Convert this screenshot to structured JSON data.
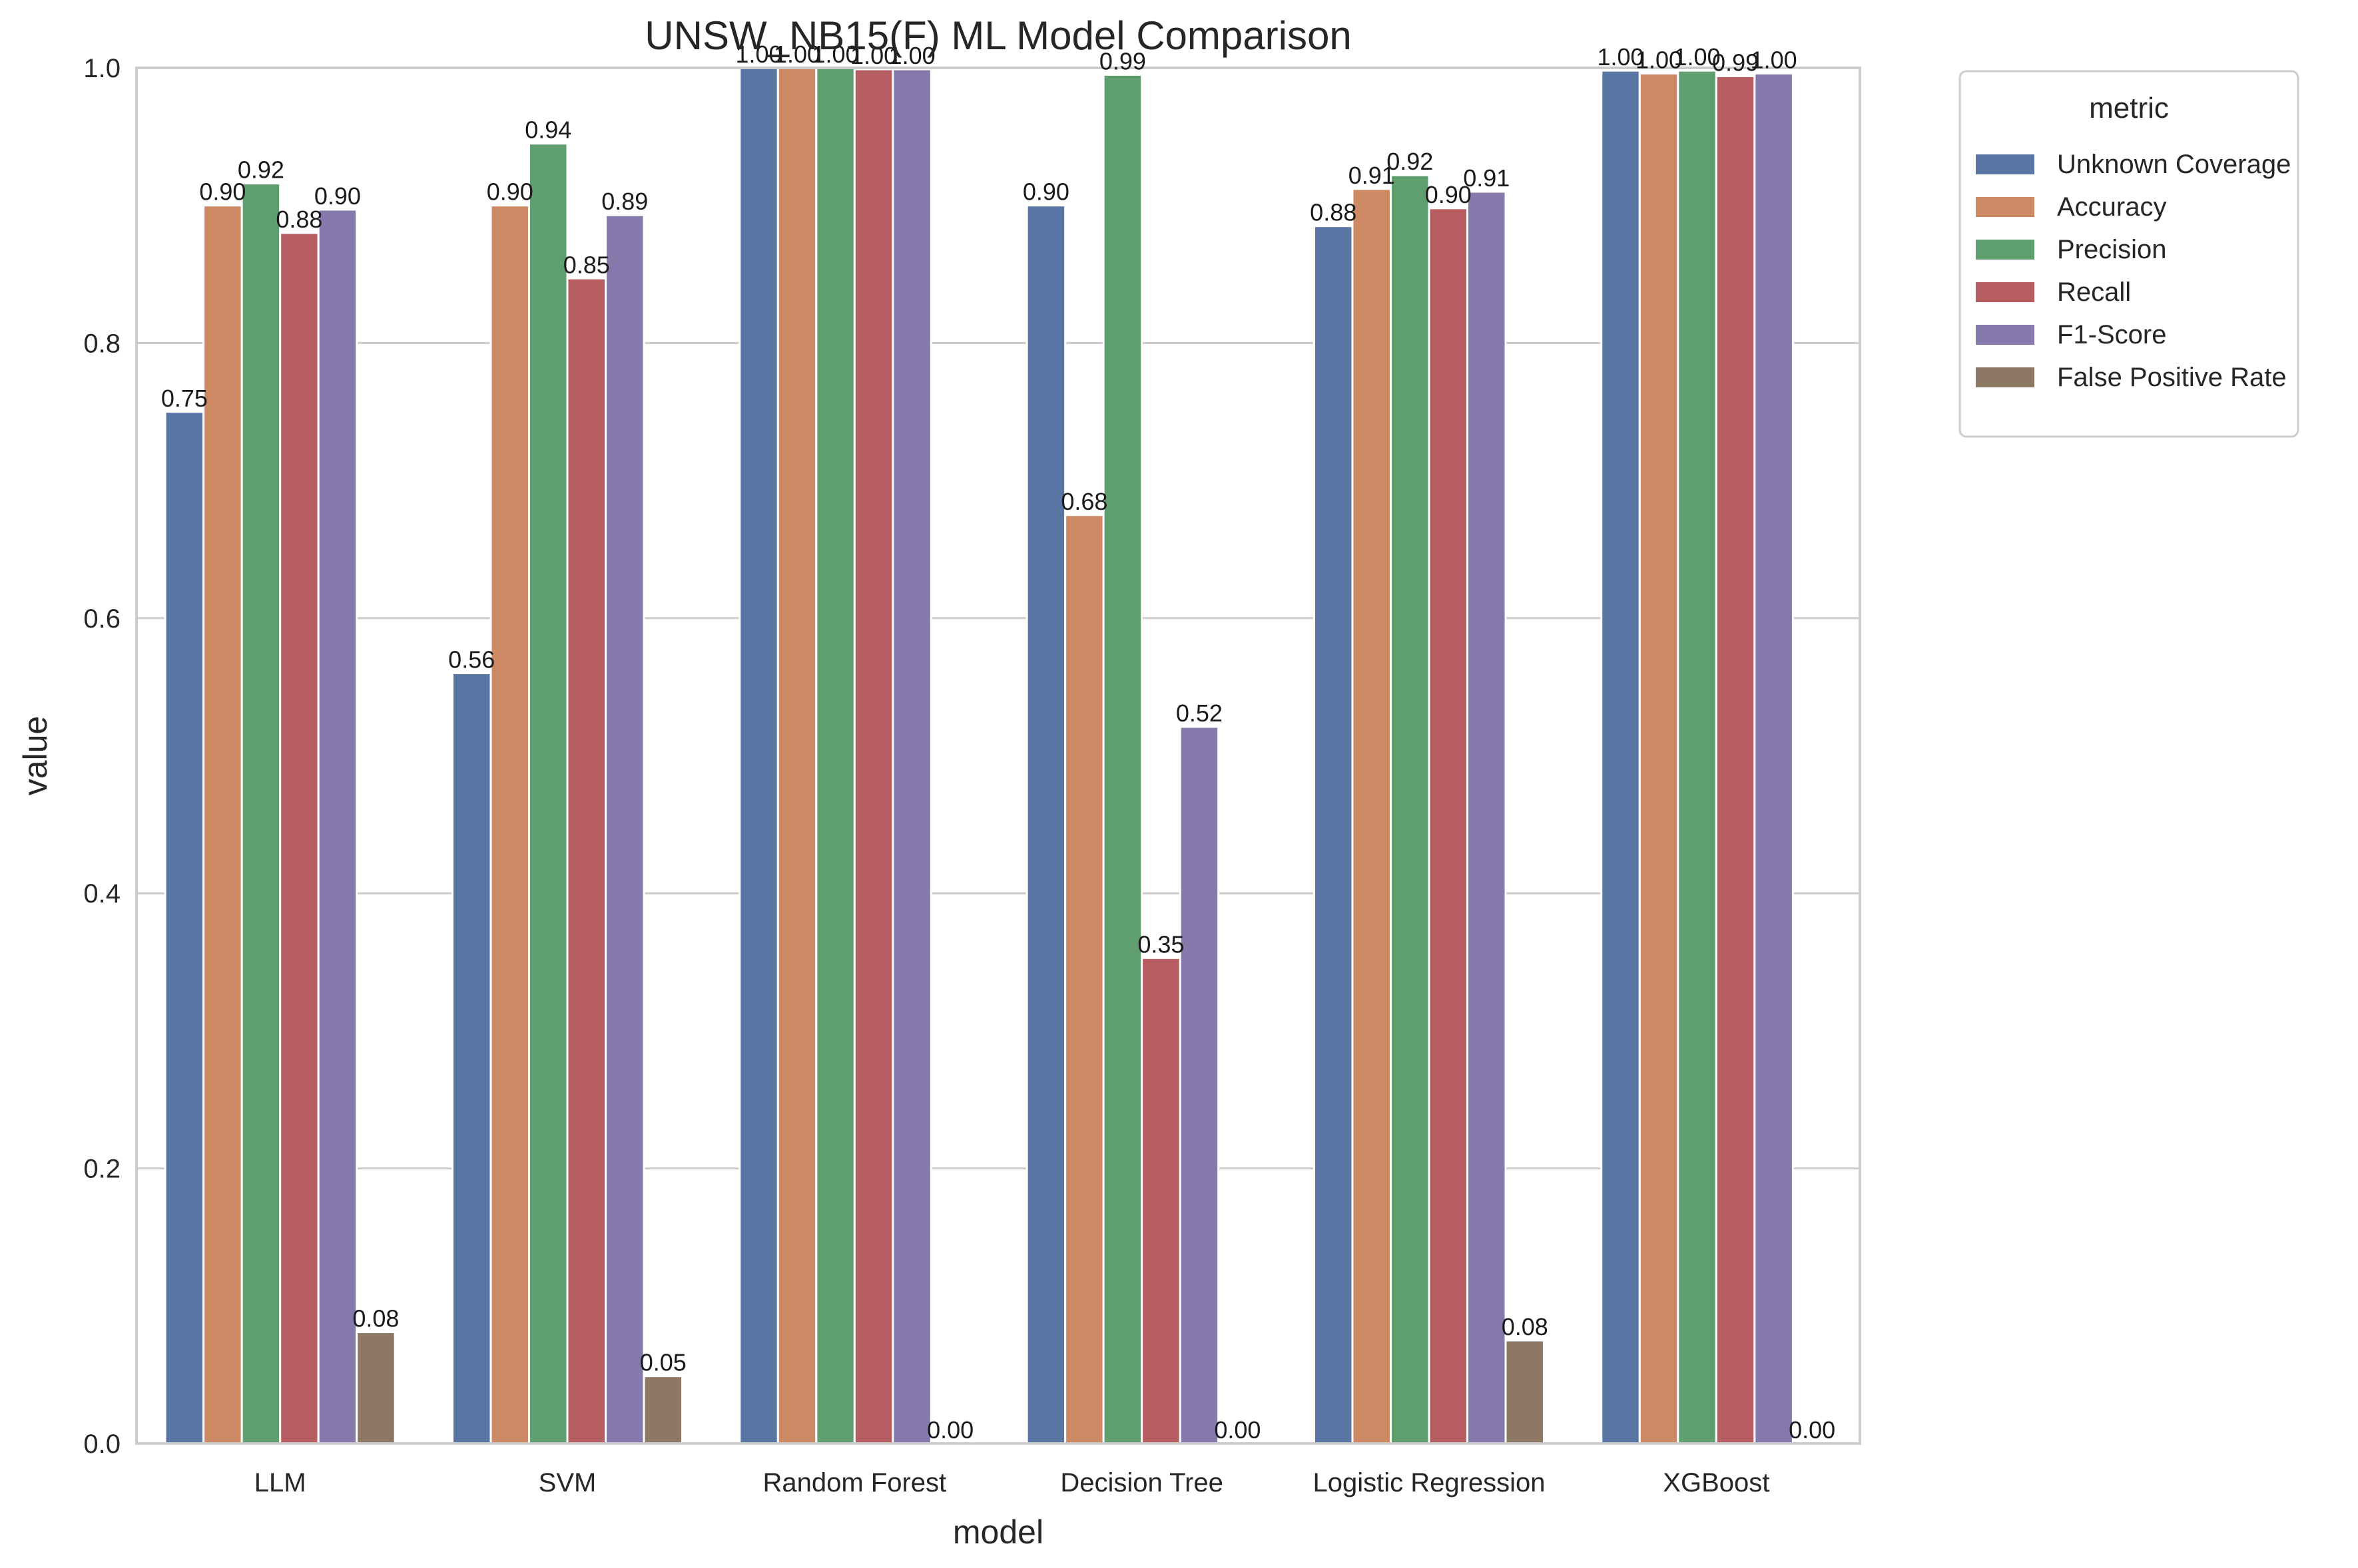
{
  "chart_data": {
    "type": "bar",
    "title": "UNSW_NB15(F) ML Model Comparison",
    "xlabel": "model",
    "ylabel": "value",
    "ylim": [
      0,
      1.0
    ],
    "yticks": [
      "0.0",
      "0.2",
      "0.4",
      "0.6",
      "0.8",
      "1.0"
    ],
    "grid": "horizontal",
    "legend": {
      "title": "metric",
      "placement": "outside-top-right"
    },
    "categories": [
      "LLM",
      "SVM",
      "Random Forest",
      "Decision Tree",
      "Logistic Regression",
      "XGBoost"
    ],
    "series": [
      {
        "name": "Unknown Coverage",
        "color": "#5875a4",
        "values": [
          0.75,
          0.56,
          1.0,
          0.9,
          0.885,
          0.998
        ],
        "labels": [
          "0.75",
          "0.56",
          "1.00",
          "0.90",
          "0.88",
          "1.00"
        ]
      },
      {
        "name": "Accuracy",
        "color": "#cc8963",
        "values": [
          0.9,
          0.9,
          1.0,
          0.675,
          0.912,
          0.996
        ],
        "labels": [
          "0.90",
          "0.90",
          "1.00",
          "0.68",
          "0.91",
          "1.00"
        ]
      },
      {
        "name": "Precision",
        "color": "#5f9e6e",
        "values": [
          0.916,
          0.945,
          1.0,
          0.995,
          0.922,
          0.998
        ],
        "labels": [
          "0.92",
          "0.94",
          "1.00",
          "0.99",
          "0.92",
          "1.00"
        ]
      },
      {
        "name": "Recall",
        "color": "#b55d60",
        "values": [
          0.88,
          0.847,
          0.999,
          0.353,
          0.898,
          0.994
        ],
        "labels": [
          "0.88",
          "0.85",
          "1.00",
          "0.35",
          "0.90",
          "0.99"
        ]
      },
      {
        "name": "F1-Score",
        "color": "#857aab",
        "values": [
          0.897,
          0.893,
          0.999,
          0.521,
          0.91,
          0.996
        ],
        "labels": [
          "0.90",
          "0.89",
          "1.00",
          "0.52",
          "0.91",
          "1.00"
        ]
      },
      {
        "name": "False Positive Rate",
        "color": "#8d7866",
        "values": [
          0.081,
          0.049,
          0.0,
          0.0,
          0.075,
          0.0
        ],
        "labels": [
          "0.08",
          "0.05",
          "0.00",
          "0.00",
          "0.08",
          "0.00"
        ]
      }
    ]
  }
}
